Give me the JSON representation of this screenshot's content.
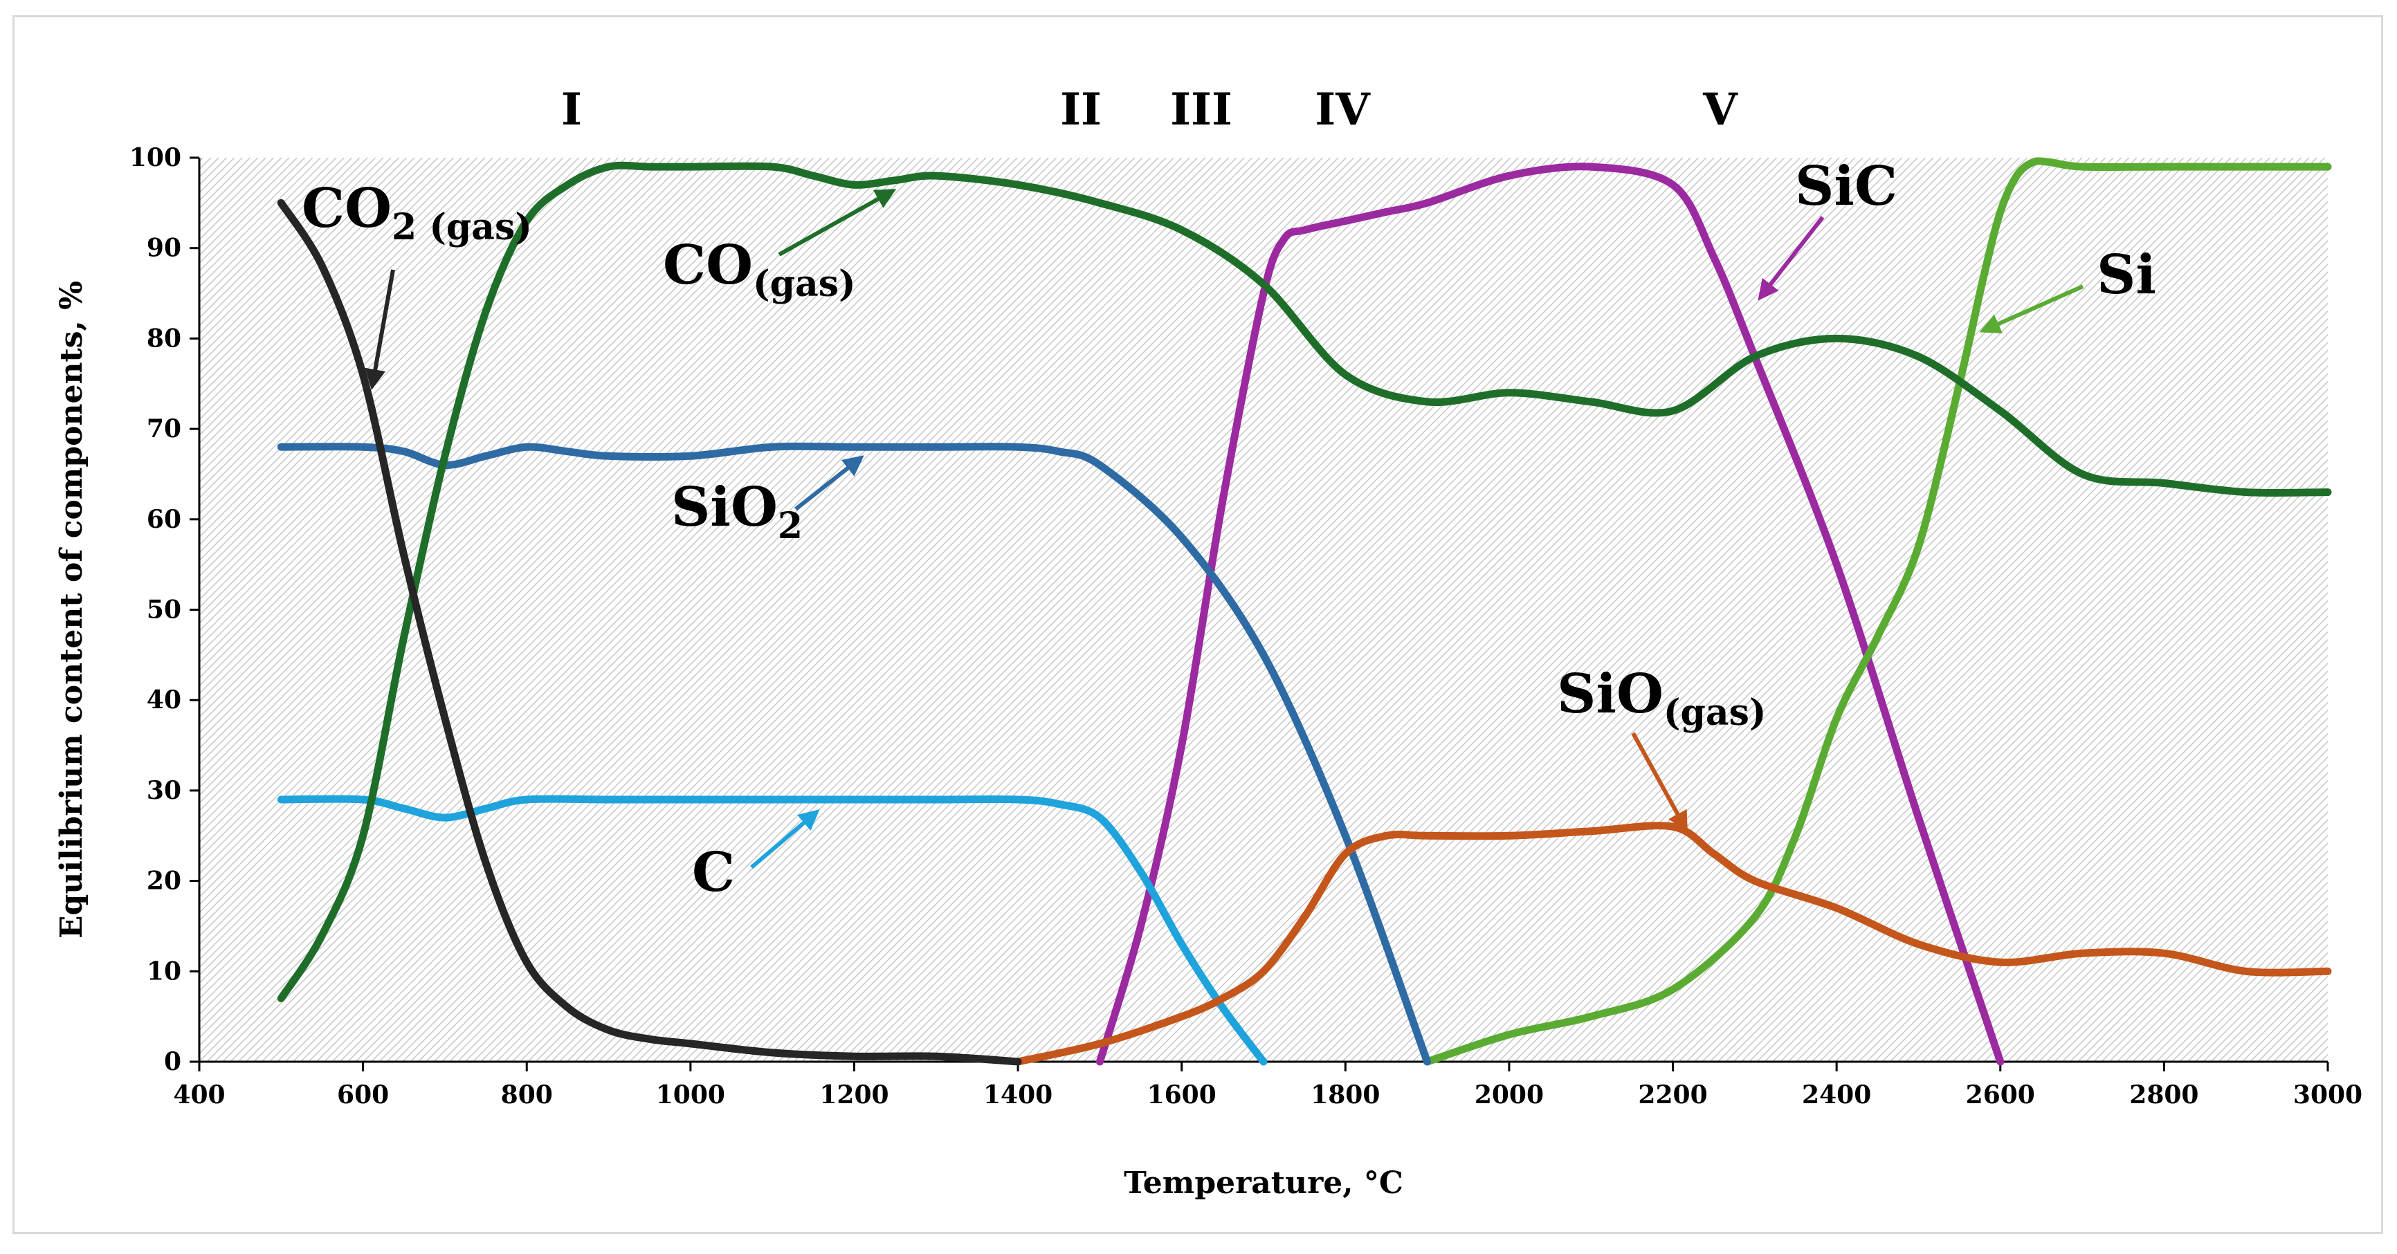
{
  "chart_data": {
    "type": "line",
    "title": "",
    "xlabel": "Temperature, °C",
    "ylabel": "Equilibrium content of components, %",
    "xlim": [
      400,
      3000
    ],
    "ylim": [
      0,
      100
    ],
    "xticks": [
      400,
      600,
      800,
      1000,
      1200,
      1400,
      1600,
      1800,
      2000,
      2200,
      2400,
      2600,
      2800,
      3000
    ],
    "yticks": [
      0,
      10,
      20,
      30,
      40,
      50,
      60,
      70,
      80,
      90,
      100
    ],
    "grid": false,
    "background": "hatched",
    "regions": [
      "I",
      "II",
      "III",
      "IV",
      "V"
    ],
    "series": [
      {
        "name": "CO2 (gas)",
        "label": {
          "main": "CO",
          "sub1": "2",
          "sub2": " (gas)"
        },
        "color": "#262626",
        "x": [
          500,
          550,
          600,
          650,
          700,
          750,
          800,
          850,
          900,
          950,
          1000,
          1100,
          1200,
          1300,
          1400
        ],
        "y": [
          95,
          88,
          76,
          56,
          38,
          22,
          11,
          6,
          3.5,
          2.5,
          2,
          1,
          0.6,
          0.6,
          0
        ]
      },
      {
        "name": "CO(gas)",
        "label": {
          "main": "CO",
          "sub1": "",
          "sub2": "(gas)"
        },
        "color": "#1e6e2a",
        "x": [
          500,
          550,
          600,
          650,
          700,
          750,
          800,
          850,
          900,
          950,
          1000,
          1100,
          1150,
          1200,
          1250,
          1300,
          1400,
          1500,
          1600,
          1700,
          1800,
          1900,
          2000,
          2100,
          2200,
          2300,
          2400,
          2500,
          2600,
          2700,
          2800,
          2900,
          3000
        ],
        "y": [
          7,
          14,
          25,
          47,
          67,
          83,
          93,
          97,
          99,
          99,
          99,
          99,
          98,
          97,
          97.5,
          98,
          97,
          95,
          92,
          86,
          76,
          73,
          74,
          73,
          72,
          78,
          80,
          78,
          72,
          65,
          64,
          63,
          63
        ]
      },
      {
        "name": "SiO2",
        "label": {
          "main": "SiO",
          "sub1": "2",
          "sub2": ""
        },
        "color": "#2e6ba4",
        "x": [
          500,
          600,
          650,
          700,
          750,
          800,
          850,
          900,
          1000,
          1100,
          1200,
          1300,
          1400,
          1450,
          1500,
          1600,
          1700,
          1800,
          1900
        ],
        "y": [
          68,
          68,
          67.5,
          66,
          67,
          68,
          67.5,
          67,
          67,
          68,
          68,
          68,
          68,
          67.5,
          66,
          58,
          45,
          25,
          0
        ]
      },
      {
        "name": "C",
        "label": {
          "main": "C",
          "sub1": "",
          "sub2": ""
        },
        "color": "#1fa3dc",
        "x": [
          500,
          600,
          650,
          700,
          750,
          800,
          900,
          1000,
          1100,
          1200,
          1300,
          1400,
          1450,
          1500,
          1550,
          1600,
          1650,
          1700
        ],
        "y": [
          29,
          29,
          28,
          27,
          28,
          29,
          29,
          29,
          29,
          29,
          29,
          29,
          28.5,
          27,
          21,
          13,
          6,
          0
        ]
      },
      {
        "name": "SiC",
        "label": {
          "main": "SiC",
          "sub1": "",
          "sub2": ""
        },
        "color": "#9b2aa0",
        "x": [
          1500,
          1550,
          1600,
          1650,
          1700,
          1725,
          1750,
          1800,
          1850,
          1900,
          2000,
          2100,
          2200,
          2250,
          2300,
          2400,
          2500,
          2600
        ],
        "y": [
          0,
          15,
          35,
          62,
          85,
          91,
          92,
          93,
          94,
          95,
          98,
          99,
          97,
          89,
          78,
          55,
          27,
          0
        ]
      },
      {
        "name": "SiO(gas)",
        "label": {
          "main": "SiO",
          "sub1": "",
          "sub2": "(gas)"
        },
        "color": "#c4561b",
        "x": [
          1400,
          1500,
          1600,
          1650,
          1700,
          1750,
          1800,
          1850,
          1900,
          2000,
          2100,
          2200,
          2250,
          2300,
          2400,
          2500,
          2600,
          2700,
          2800,
          2900,
          3000
        ],
        "y": [
          0,
          2,
          5,
          7,
          10,
          16,
          23,
          25,
          25,
          25,
          25.5,
          26,
          23,
          20,
          17,
          13,
          11,
          12,
          12,
          10,
          10
        ]
      },
      {
        "name": "Si",
        "label": {
          "main": "Si",
          "sub1": "",
          "sub2": ""
        },
        "color": "#5aab32",
        "x": [
          1900,
          2000,
          2100,
          2200,
          2300,
          2350,
          2400,
          2450,
          2500,
          2550,
          2580,
          2600,
          2620,
          2640,
          2660,
          2700,
          2800,
          3000
        ],
        "y": [
          0,
          3,
          5,
          8,
          16,
          25,
          38,
          47,
          57,
          75,
          87,
          94,
          98,
          99.5,
          99.5,
          99,
          99,
          99
        ]
      }
    ]
  }
}
